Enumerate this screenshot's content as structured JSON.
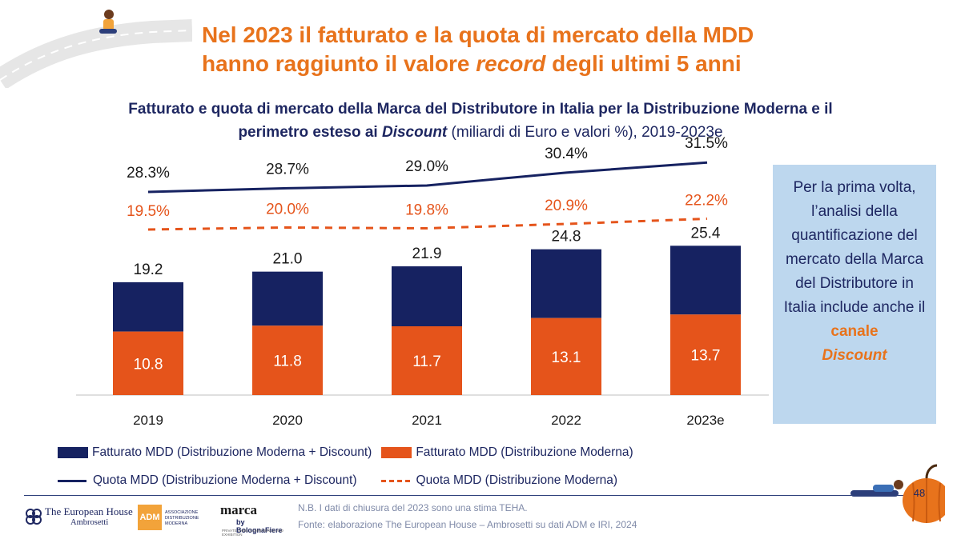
{
  "header": {
    "title_line1": "Nel 2023 il fatturato e la quota di mercato della MDD",
    "title_line2_a": "hanno raggiunto il valore ",
    "title_line2_b": "record",
    "title_line2_c": " degli ultimi 5 anni"
  },
  "subtitle": {
    "line1": "Fatturato e quota di mercato della Marca del Distributore in Italia per la Distribuzione Moderna e il",
    "line2_a": "perimetro esteso ai ",
    "line2_b": "Discount",
    "line2_c": " (miliardi di Euro e valori %), 2019-2023e"
  },
  "chart_data": {
    "type": "bar",
    "categories": [
      "2019",
      "2020",
      "2021",
      "2022",
      "2023e"
    ],
    "series": [
      {
        "name": "Fatturato MDD (Distribuzione Moderna + Discount)",
        "kind": "bar",
        "color": "#162261",
        "values": [
          19.2,
          21.0,
          21.9,
          24.8,
          25.4
        ],
        "labels": [
          "19.2",
          "21.0",
          "21.9",
          "24.8",
          "25.4"
        ]
      },
      {
        "name": "Fatturato MDD (Distribuzione Moderna)",
        "kind": "bar",
        "color": "#e5541b",
        "values": [
          10.8,
          11.8,
          11.7,
          13.1,
          13.7
        ],
        "labels": [
          "10.8",
          "11.8",
          "11.7",
          "13.1",
          "13.7"
        ]
      },
      {
        "name": "Quota MDD (Distribuzione Moderna + Discount)",
        "kind": "line",
        "style": "solid",
        "color": "#162261",
        "values": [
          28.3,
          28.7,
          29.0,
          30.4,
          31.5
        ],
        "labels": [
          "28.3%",
          "28.7%",
          "29.0%",
          "30.4%",
          "31.5%"
        ]
      },
      {
        "name": "Quota MDD (Distribuzione Moderna)",
        "kind": "line",
        "style": "dashed",
        "color": "#e5541b",
        "values": [
          19.5,
          20.0,
          19.8,
          20.9,
          22.2
        ],
        "labels": [
          "19.5%",
          "20.0%",
          "19.8%",
          "20.9%",
          "22.2%"
        ]
      }
    ],
    "legend_position": "bottom"
  },
  "callout": {
    "text": "Per la prima volta, l’analisi della quantificazione del mercato della Marca del Distributore in Italia include anche il ",
    "highlight": "canale",
    "highlight_italic": "Discount"
  },
  "footer": {
    "note": "N.B. I dati di chiusura del 2023 sono una stima TEHA.",
    "source": "Fonte: elaborazione The European House – Ambrosetti su dati ADM e IRI, 2024",
    "page_number": "48",
    "logo_teh_line1": "The European House",
    "logo_teh_line2": "Ambrosetti",
    "logo_adm": "ADM",
    "logo_adm_text": "ASSOCIAZIONE DISTRIBUZIONE MODERNA",
    "logo_marca": "marca",
    "logo_marca_by": "by BolognaFiere",
    "logo_marca_tag": "PRIVATE LABEL CONFERENCE AND EXHIBITION"
  }
}
